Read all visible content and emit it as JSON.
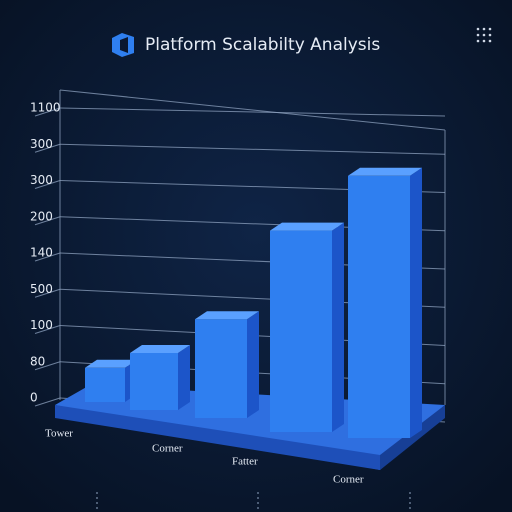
{
  "chart_data": {
    "type": "bar3d",
    "title": "Platform Scalabilty Analysis",
    "y_axis_labels": [
      "0",
      "80",
      "100",
      "500",
      "140",
      "200",
      "300",
      "300",
      "1100"
    ],
    "categories": [
      "Tower",
      "Corner",
      "Fatter",
      null,
      "Corner"
    ],
    "values": [
      0.9,
      1.5,
      2.6,
      5.3,
      6.9
    ],
    "ylim": [
      0,
      8
    ],
    "color": "#2f7ff0"
  }
}
